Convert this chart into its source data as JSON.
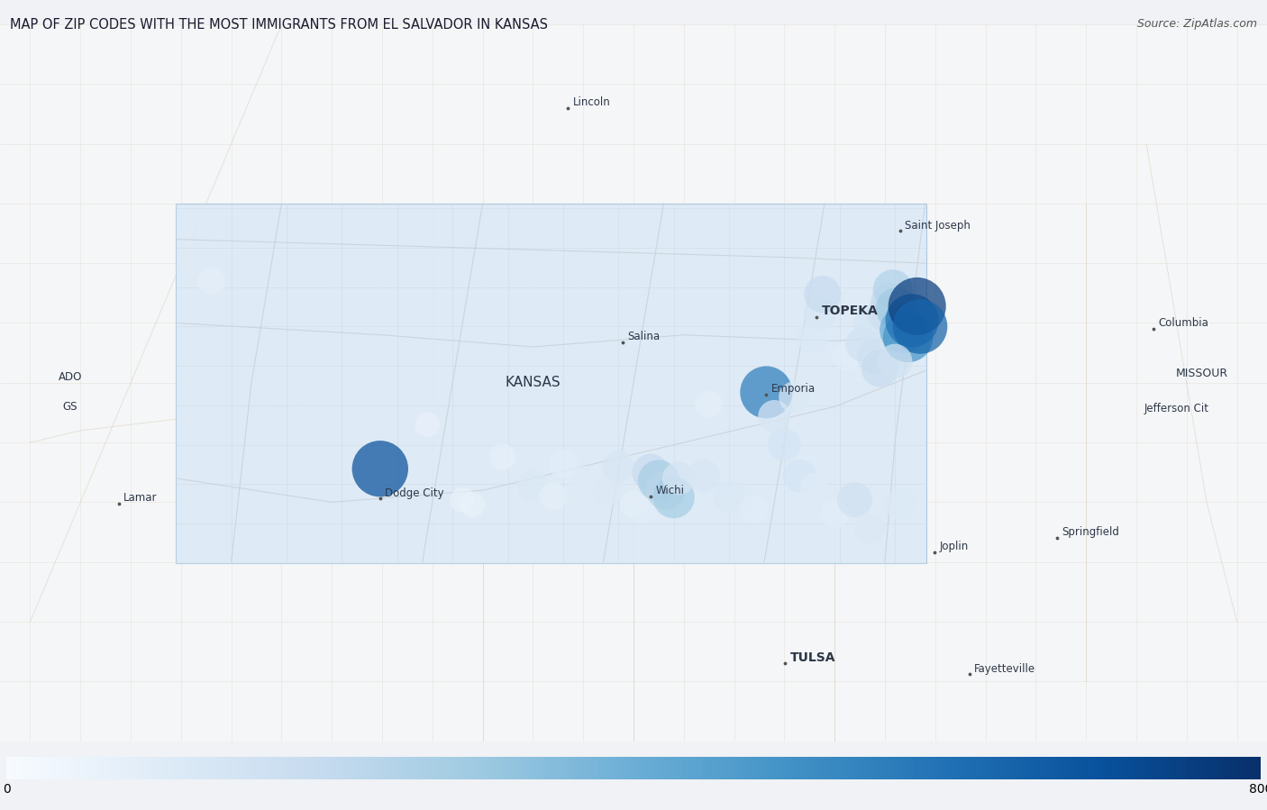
{
  "title": "MAP OF ZIP CODES WITH THE MOST IMMIGRANTS FROM EL SALVADOR IN KANSAS",
  "source": "Source: ZipAtlas.com",
  "colorbar_min": 0,
  "colorbar_max": 800,
  "colormap": "Blues",
  "figsize": [
    14.06,
    8.99
  ],
  "fig_bg": "#f0f2f5",
  "map_bg": "#f5f6f7",
  "kansas_fill": "#dce9f5",
  "kansas_edge": "#a8c4dd",
  "city_labels": [
    {
      "name": "Lincoln",
      "lon": -98.15,
      "lat": 40.8,
      "dot": true,
      "bold": false,
      "size": 8.5
    },
    {
      "name": "Saint Joseph",
      "lon": -94.85,
      "lat": 39.77,
      "dot": true,
      "bold": false,
      "size": 8.5
    },
    {
      "name": "Columbia",
      "lon": -92.33,
      "lat": 38.95,
      "dot": true,
      "bold": false,
      "size": 8.5
    },
    {
      "name": "MISSOUR",
      "lon": -91.85,
      "lat": 38.58,
      "dot": false,
      "bold": false,
      "size": 9
    },
    {
      "name": "Jefferson Cit",
      "lon": -92.1,
      "lat": 38.28,
      "dot": false,
      "bold": false,
      "size": 8.5
    },
    {
      "name": "TOPEKA",
      "lon": -95.68,
      "lat": 39.05,
      "dot": true,
      "bold": true,
      "size": 10
    },
    {
      "name": "Salina",
      "lon": -97.61,
      "lat": 38.84,
      "dot": true,
      "bold": false,
      "size": 8.5
    },
    {
      "name": "Lamar",
      "lon": -102.62,
      "lat": 37.49,
      "dot": true,
      "bold": false,
      "size": 8.5
    },
    {
      "name": "KANSAS",
      "lon": -98.5,
      "lat": 38.5,
      "dot": false,
      "bold": false,
      "size": 11
    },
    {
      "name": "Emporia",
      "lon": -96.18,
      "lat": 38.4,
      "dot": true,
      "bold": false,
      "size": 8.5
    },
    {
      "name": "Dodge City",
      "lon": -100.02,
      "lat": 37.53,
      "dot": true,
      "bold": false,
      "size": 8.5
    },
    {
      "name": "Wichi",
      "lon": -97.33,
      "lat": 37.55,
      "dot": true,
      "bold": false,
      "size": 8.5
    },
    {
      "name": "Joplin",
      "lon": -94.51,
      "lat": 37.08,
      "dot": true,
      "bold": false,
      "size": 8.5
    },
    {
      "name": "Springfield",
      "lon": -93.29,
      "lat": 37.2,
      "dot": true,
      "bold": false,
      "size": 8.5
    },
    {
      "name": "TULSA",
      "lon": -95.99,
      "lat": 36.15,
      "dot": true,
      "bold": true,
      "size": 10
    },
    {
      "name": "Fayetteville",
      "lon": -94.16,
      "lat": 36.06,
      "dot": true,
      "bold": false,
      "size": 8.5
    },
    {
      "name": "ADO",
      "lon": -103.1,
      "lat": 38.55,
      "dot": false,
      "bold": false,
      "size": 8.5
    },
    {
      "name": "GS",
      "lon": -103.1,
      "lat": 38.3,
      "dot": false,
      "bold": false,
      "size": 8.5
    }
  ],
  "bubbles": [
    {
      "lon": -101.7,
      "lat": 39.35,
      "value": 75
    },
    {
      "lon": -100.02,
      "lat": 37.78,
      "value": 700
    },
    {
      "lon": -99.55,
      "lat": 38.15,
      "value": 55
    },
    {
      "lon": -99.1,
      "lat": 37.48,
      "value": 60
    },
    {
      "lon": -99.2,
      "lat": 37.52,
      "value": 58
    },
    {
      "lon": -98.8,
      "lat": 37.88,
      "value": 68
    },
    {
      "lon": -98.5,
      "lat": 37.64,
      "value": 115
    },
    {
      "lon": -98.3,
      "lat": 37.55,
      "value": 78
    },
    {
      "lon": -98.2,
      "lat": 37.82,
      "value": 88
    },
    {
      "lon": -98.0,
      "lat": 37.68,
      "value": 95
    },
    {
      "lon": -97.75,
      "lat": 37.6,
      "value": 105
    },
    {
      "lon": -97.65,
      "lat": 37.8,
      "value": 125
    },
    {
      "lon": -97.5,
      "lat": 37.48,
      "value": 75
    },
    {
      "lon": -97.4,
      "lat": 37.44,
      "value": 88
    },
    {
      "lon": -97.33,
      "lat": 37.75,
      "value": 195
    },
    {
      "lon": -97.25,
      "lat": 37.68,
      "value": 275
    },
    {
      "lon": -97.18,
      "lat": 37.6,
      "value": 230
    },
    {
      "lon": -97.1,
      "lat": 37.54,
      "value": 280
    },
    {
      "lon": -97.05,
      "lat": 37.7,
      "value": 135
    },
    {
      "lon": -96.8,
      "lat": 37.72,
      "value": 128
    },
    {
      "lon": -96.55,
      "lat": 37.55,
      "value": 118
    },
    {
      "lon": -96.45,
      "lat": 37.5,
      "value": 108
    },
    {
      "lon": -96.3,
      "lat": 37.44,
      "value": 88
    },
    {
      "lon": -96.18,
      "lat": 38.42,
      "value": 560
    },
    {
      "lon": -96.1,
      "lat": 38.22,
      "value": 128
    },
    {
      "lon": -95.85,
      "lat": 37.72,
      "value": 138
    },
    {
      "lon": -95.7,
      "lat": 37.62,
      "value": 98
    },
    {
      "lon": -95.5,
      "lat": 37.4,
      "value": 88
    },
    {
      "lon": -95.3,
      "lat": 37.52,
      "value": 165
    },
    {
      "lon": -95.38,
      "lat": 38.72,
      "value": 88
    },
    {
      "lon": -95.22,
      "lat": 38.82,
      "value": 155
    },
    {
      "lon": -95.15,
      "lat": 38.98,
      "value": 138
    },
    {
      "lon": -95.1,
      "lat": 38.72,
      "value": 165
    },
    {
      "lon": -95.05,
      "lat": 38.62,
      "value": 195
    },
    {
      "lon": -95.0,
      "lat": 39.08,
      "value": 175
    },
    {
      "lon": -94.95,
      "lat": 39.18,
      "value": 205
    },
    {
      "lon": -94.92,
      "lat": 39.28,
      "value": 245
    },
    {
      "lon": -94.88,
      "lat": 39.12,
      "value": 295
    },
    {
      "lon": -94.82,
      "lat": 38.94,
      "value": 395
    },
    {
      "lon": -94.77,
      "lat": 38.88,
      "value": 490
    },
    {
      "lon": -94.73,
      "lat": 39.02,
      "value": 595
    },
    {
      "lon": -94.68,
      "lat": 39.14,
      "value": 760
    },
    {
      "lon": -94.65,
      "lat": 38.97,
      "value": 640
    },
    {
      "lon": -94.9,
      "lat": 38.68,
      "value": 158
    },
    {
      "lon": -95.65,
      "lat": 39.08,
      "value": 128
    },
    {
      "lon": -95.72,
      "lat": 38.88,
      "value": 118
    },
    {
      "lon": -95.62,
      "lat": 39.24,
      "value": 195
    },
    {
      "lon": -96.75,
      "lat": 38.32,
      "value": 78
    },
    {
      "lon": -95.9,
      "lat": 38.38,
      "value": 115
    },
    {
      "lon": -96.0,
      "lat": 37.98,
      "value": 138
    },
    {
      "lon": -95.15,
      "lat": 37.28,
      "value": 110
    },
    {
      "lon": -94.85,
      "lat": 37.48,
      "value": 108
    }
  ],
  "kansas_bounds": {
    "lon_min": -102.05,
    "lon_max": -94.59,
    "lat_min": 36.99,
    "lat_max": 40.0
  },
  "map_extent": {
    "lon_min": -103.8,
    "lon_max": -91.2,
    "lat_min": 35.5,
    "lat_max": 41.5
  },
  "road_color": "#d8cfc0",
  "county_color": "#c8d8e8",
  "road_lines": [
    [
      [
        -102.05,
        37.7
      ],
      [
        -100.5,
        37.5
      ],
      [
        -99.0,
        37.6
      ],
      [
        -97.5,
        37.9
      ],
      [
        -96.5,
        38.1
      ],
      [
        -95.5,
        38.3
      ],
      [
        -94.6,
        38.6
      ]
    ],
    [
      [
        -102.05,
        39.0
      ],
      [
        -100.0,
        38.9
      ],
      [
        -98.5,
        38.8
      ],
      [
        -97.0,
        38.9
      ],
      [
        -95.5,
        38.85
      ],
      [
        -94.6,
        38.9
      ]
    ],
    [
      [
        -102.05,
        39.7
      ],
      [
        -100.0,
        39.65
      ],
      [
        -98.0,
        39.6
      ],
      [
        -96.0,
        39.55
      ],
      [
        -94.6,
        39.5
      ]
    ],
    [
      [
        -101.5,
        37.0
      ],
      [
        -101.3,
        38.5
      ],
      [
        -101.0,
        40.0
      ]
    ],
    [
      [
        -99.6,
        37.0
      ],
      [
        -99.4,
        38.0
      ],
      [
        -99.2,
        39.0
      ],
      [
        -99.0,
        40.0
      ]
    ],
    [
      [
        -97.8,
        37.0
      ],
      [
        -97.6,
        38.0
      ],
      [
        -97.4,
        39.0
      ],
      [
        -97.2,
        40.0
      ]
    ],
    [
      [
        -96.2,
        37.0
      ],
      [
        -96.0,
        38.0
      ],
      [
        -95.8,
        39.0
      ],
      [
        -95.6,
        40.0
      ]
    ],
    [
      [
        -95.0,
        37.0
      ],
      [
        -94.9,
        38.0
      ],
      [
        -94.75,
        39.0
      ],
      [
        -94.6,
        40.0
      ]
    ]
  ]
}
